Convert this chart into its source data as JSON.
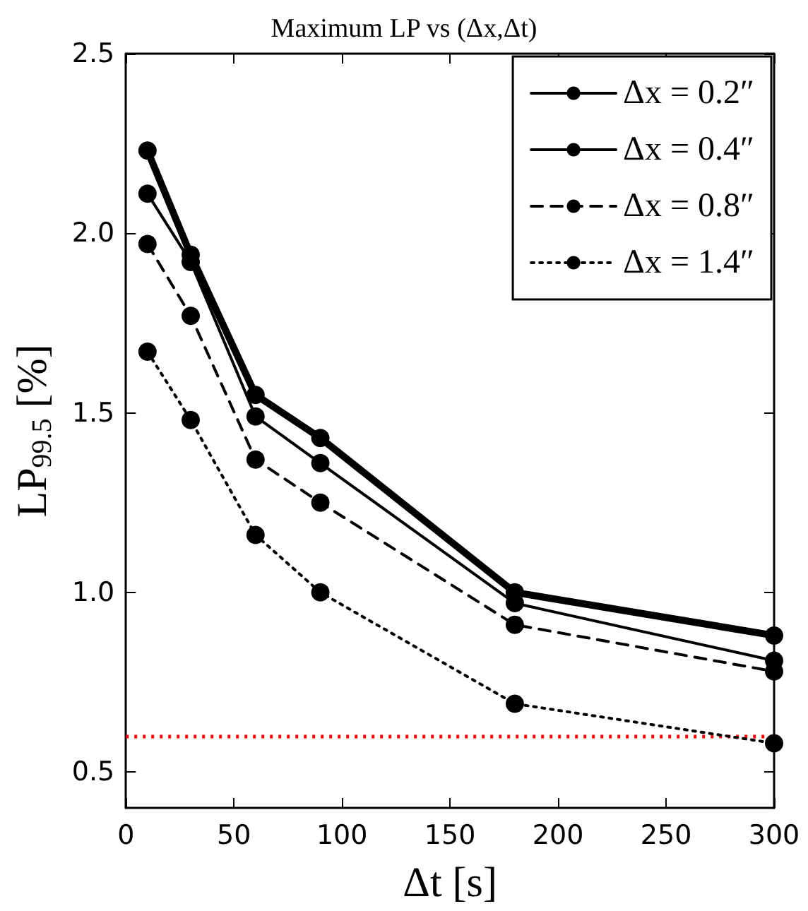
{
  "chart_data": {
    "type": "line",
    "title": "Maximum LP vs (Δx,Δt)",
    "xlabel": "Δt [s]",
    "ylabel": "LP$_{99.5}$ [%]",
    "x": [
      10,
      30,
      60,
      90,
      180,
      300
    ],
    "series": [
      {
        "name": "Δx = 0.2″",
        "color": "#000000",
        "line_style": "solid",
        "values": [
          2.23,
          1.94,
          1.55,
          1.43,
          1.0,
          0.88
        ]
      },
      {
        "name": "Δx = 0.4″",
        "color": "#000000",
        "line_style": "solid",
        "values": [
          2.11,
          1.92,
          1.49,
          1.36,
          0.97,
          0.81
        ]
      },
      {
        "name": "Δx = 0.8″",
        "color": "#000000",
        "line_style": "dashed",
        "values": [
          1.97,
          1.77,
          1.37,
          1.25,
          0.91,
          0.78
        ]
      },
      {
        "name": "Δx = 1.4″",
        "color": "#000000",
        "line_style": "dotted",
        "values": [
          1.67,
          1.48,
          1.16,
          1.0,
          0.69,
          0.58
        ]
      }
    ],
    "xlim": [
      0,
      300
    ],
    "xticks": [
      0,
      50,
      100,
      150,
      200,
      250,
      300
    ],
    "ylim": [
      0.4,
      2.5
    ],
    "yticks": [
      {
        "value": 0.5,
        "label": "0.5"
      },
      {
        "value": 1,
        "label": "1.0"
      },
      {
        "value": 1.5,
        "label": "1.5"
      },
      {
        "value": 2,
        "label": "2.0"
      },
      {
        "value": 2.5,
        "label": "2.5"
      }
    ],
    "ref_lines": [
      {
        "axis": "y",
        "value": 0.6,
        "color": "#ff0000",
        "line_style": "dotted"
      }
    ],
    "marker": "circle",
    "grid": false,
    "legend": "top right"
  }
}
